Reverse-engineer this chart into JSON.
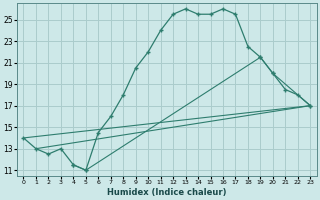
{
  "xlabel": "Humidex (Indice chaleur)",
  "bg_color": "#cde8e8",
  "grid_color": "#aacccc",
  "line_color": "#2e7d6e",
  "xlim": [
    -0.5,
    23.5
  ],
  "ylim": [
    10.5,
    26.5
  ],
  "xticks": [
    0,
    1,
    2,
    3,
    4,
    5,
    6,
    7,
    8,
    9,
    10,
    11,
    12,
    13,
    14,
    15,
    16,
    17,
    18,
    19,
    20,
    21,
    22,
    23
  ],
  "yticks": [
    11,
    13,
    15,
    17,
    19,
    21,
    23,
    25
  ],
  "line1_x": [
    0,
    1,
    2,
    3,
    4,
    5,
    6,
    7,
    8,
    9,
    10,
    11,
    12,
    13,
    14,
    15,
    16,
    17,
    18,
    19,
    20,
    21,
    22,
    23
  ],
  "line1_y": [
    14.0,
    13.0,
    12.5,
    13.0,
    11.5,
    11.0,
    14.5,
    16.0,
    18.0,
    20.5,
    22.0,
    24.0,
    25.5,
    26.0,
    25.5,
    25.5,
    26.0,
    25.5,
    22.5,
    21.5,
    20.0,
    18.5,
    18.0,
    17.0
  ],
  "line2_x": [
    0,
    23
  ],
  "line2_y": [
    14.0,
    17.0
  ],
  "line3_x": [
    1,
    23
  ],
  "line3_y": [
    13.0,
    17.0
  ],
  "line4_x": [
    4,
    5,
    19,
    20,
    23
  ],
  "line4_y": [
    11.5,
    11.0,
    21.5,
    20.0,
    17.0
  ]
}
